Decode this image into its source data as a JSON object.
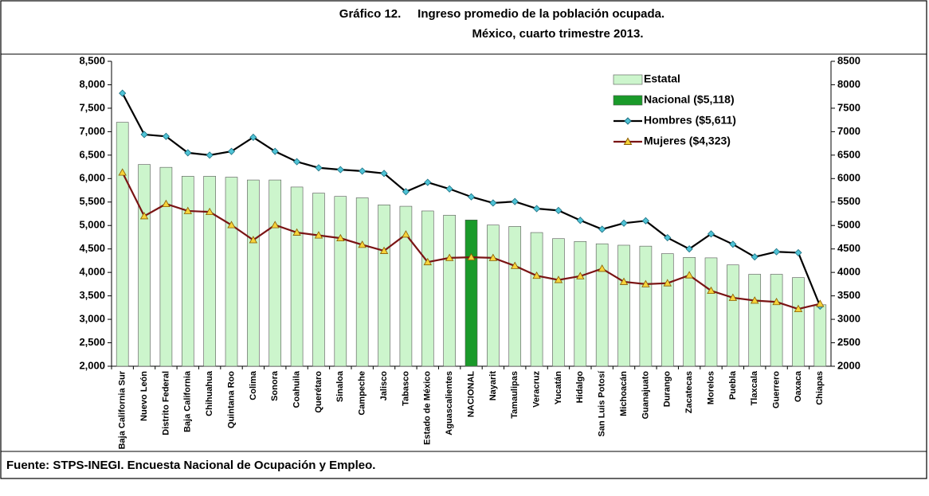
{
  "chart_data": {
    "type": "bar-line",
    "title": "Gráfico 12.     Ingreso promedio de la población ocupada.",
    "subtitle": "México, cuarto trimestre 2013.",
    "source": "Fuente: STPS-INEGI. Encuesta Nacional de Ocupación y Empleo.",
    "categories": [
      "Baja California Sur",
      "Nuevo León",
      "Distrito Federal",
      "Baja California",
      "Chihuahua",
      "Quintana Roo",
      "Colima",
      "Sonora",
      "Coahuila",
      "Querétaro",
      "Sinaloa",
      "Campeche",
      "Jalisco",
      "Tabasco",
      "Estado de México",
      "Aguascalientes",
      "NACIONAL",
      "Nayarit",
      "Tamaulipas",
      "Veracruz",
      "Yucatán",
      "Hidalgo",
      "San Luis Potosí",
      "Michoacán",
      "Guanajuato",
      "Durango",
      "Zacatecas",
      "Morelos",
      "Puebla",
      "Tlaxcala",
      "Guerrero",
      "Oaxaca",
      "Chiapas"
    ],
    "series": [
      {
        "name": "Estatal",
        "kind": "bar",
        "color": "#ccf5cc",
        "values": [
          7200,
          6300,
          6240,
          6050,
          6050,
          6030,
          5970,
          5970,
          5820,
          5690,
          5620,
          5590,
          5440,
          5410,
          5310,
          5220,
          null,
          5010,
          4980,
          4850,
          4720,
          4660,
          4610,
          4580,
          4560,
          4400,
          4320,
          4310,
          4160,
          3960,
          3960,
          3890,
          3310
        ]
      },
      {
        "name": "Nacional ($5,118)",
        "kind": "bar",
        "color": "#1a9a2a",
        "values": [
          null,
          null,
          null,
          null,
          null,
          null,
          null,
          null,
          null,
          null,
          null,
          null,
          null,
          null,
          null,
          null,
          5118,
          null,
          null,
          null,
          null,
          null,
          null,
          null,
          null,
          null,
          null,
          null,
          null,
          null,
          null,
          null,
          null
        ]
      },
      {
        "name": "Hombres ($5,611)",
        "kind": "line",
        "color": "#000000",
        "marker": "#4fc3d6",
        "values": [
          7820,
          6940,
          6900,
          6550,
          6500,
          6580,
          6880,
          6580,
          6360,
          6230,
          6190,
          6160,
          6110,
          5720,
          5920,
          5780,
          5611,
          5480,
          5510,
          5360,
          5320,
          5110,
          4920,
          5050,
          5100,
          4740,
          4500,
          4820,
          4600,
          4330,
          4440,
          4420,
          3280
        ]
      },
      {
        "name": "Mujeres ($4,323)",
        "kind": "line",
        "color": "#7a1414",
        "marker": "#f5d33a",
        "values": [
          6130,
          5200,
          5460,
          5310,
          5290,
          5010,
          4690,
          5010,
          4850,
          4790,
          4730,
          4590,
          4460,
          4810,
          4220,
          4310,
          4323,
          4310,
          4140,
          3930,
          3840,
          3920,
          4080,
          3800,
          3750,
          3770,
          3940,
          3610,
          3460,
          3400,
          3370,
          3220,
          3330
        ]
      }
    ],
    "ylim": [
      2000,
      8500
    ],
    "yticks": [
      {
        "value": 2000,
        "label": "2,000"
      },
      {
        "value": 2500,
        "label": "2,500"
      },
      {
        "value": 3000,
        "label": "3,000"
      },
      {
        "value": 3500,
        "label": "3,500"
      },
      {
        "value": 4000,
        "label": "4,000"
      },
      {
        "value": 4500,
        "label": "4,500"
      },
      {
        "value": 5000,
        "label": "5,000"
      },
      {
        "value": 5500,
        "label": "5,500"
      },
      {
        "value": 6000,
        "label": "6,000"
      },
      {
        "value": 6500,
        "label": "6,500"
      },
      {
        "value": 7000,
        "label": "7,000"
      },
      {
        "value": 7500,
        "label": "7,500"
      },
      {
        "value": 8000,
        "label": "8,000"
      },
      {
        "value": 8500,
        "label": "8,500"
      }
    ],
    "y2lim": [
      2000,
      8500
    ],
    "y2ticks": [
      2000,
      2500,
      3000,
      3500,
      4000,
      4500,
      5000,
      5500,
      6000,
      6500,
      7000,
      7500,
      8000,
      8500
    ]
  }
}
